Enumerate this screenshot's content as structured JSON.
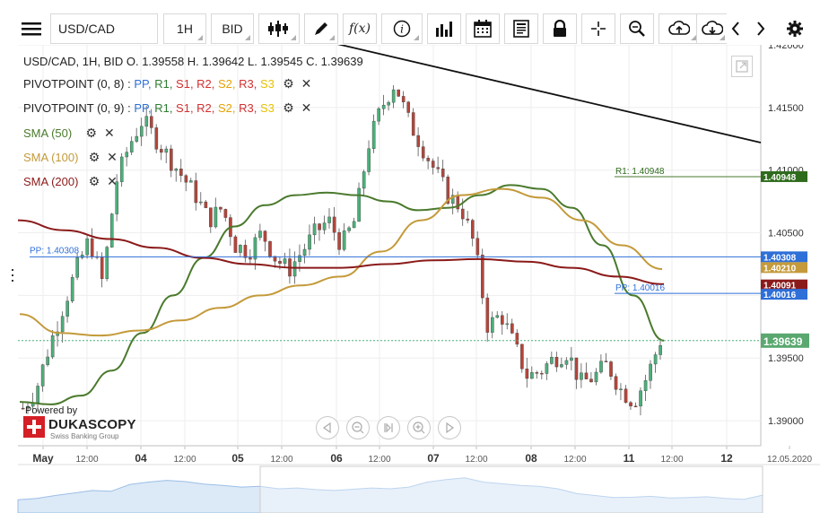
{
  "toolbar": {
    "symbol": "USD/CAD",
    "timeframe": "1H",
    "price_side": "BID",
    "fx_label": "f(x)",
    "info_label": "i"
  },
  "legend": {
    "ohlc": "USD/CAD, 1H, BID    O. 1.39558  H. 1.39642  L. 1.39545  C. 1.39639",
    "pivot1_name": "PIVOTPOINT (0, 8)",
    "pivot2_name": "PIVOTPOINT (0, 9)",
    "pivot_levels": [
      {
        "label": "PP",
        "color": "#2e6fd8"
      },
      {
        "label": "R1",
        "color": "#2e7d32"
      },
      {
        "label": "S1",
        "color": "#d32f2f"
      },
      {
        "label": "R2",
        "color": "#d32f2f"
      },
      {
        "label": "S2",
        "color": "#e6a100"
      },
      {
        "label": "R3",
        "color": "#d32f2f"
      },
      {
        "label": "S3",
        "color": "#e6c200"
      }
    ],
    "sma50": "SMA (50)",
    "sma100": "SMA (100)",
    "sma200": "SMA (200)",
    "sma50_color": "#4a7a2c",
    "sma100_color": "#c49a3a",
    "sma200_color": "#8b1a1a"
  },
  "branding": {
    "powered_by": "Powered by",
    "name": "DUKASCOPY",
    "sub": "Swiss Banking Group"
  },
  "chart_data": {
    "type": "line",
    "title": "USD/CAD, 1H, BID",
    "ohlc": {
      "open": 1.39558,
      "high": 1.39642,
      "low": 1.39545,
      "close": 1.39639
    },
    "ylim": [
      1.388,
      1.42
    ],
    "y_ticks": [
      "1.42000",
      "1.41500",
      "1.41000",
      "1.40500",
      "1.40000",
      "1.39500",
      "1.39000"
    ],
    "x_ticks": [
      "May",
      "12:00",
      "04",
      "12:00",
      "05",
      "12:00",
      "06",
      "12:00",
      "07",
      "12:00",
      "08",
      "12:00",
      "11",
      "12:00",
      "12",
      "12.05.2020"
    ],
    "price_labels": {
      "r1": "1.40948",
      "pp_upper": "1.40308",
      "sma100": "1.40210",
      "sma200": "1.40091",
      "pp_lower": "1.40016",
      "last": "1.39639"
    },
    "annotations": {
      "r1_text": "R1: 1.40948",
      "pp_left_text": "PP: 1.40308",
      "pp_right_text": "PP: 1.40016"
    },
    "series": [
      {
        "name": "USD/CAD",
        "values": [
          1.391,
          1.3925,
          1.396,
          1.399,
          1.402,
          1.4045,
          1.401,
          1.409,
          1.412,
          1.414,
          1.4125,
          1.411,
          1.4095,
          1.408,
          1.406,
          1.407,
          1.404,
          1.4035,
          1.405,
          1.403,
          1.402,
          1.4035,
          1.405,
          1.406,
          1.404,
          1.406,
          1.412,
          1.415,
          1.417,
          1.414,
          1.412,
          1.41,
          1.408,
          1.407,
          1.404,
          1.3975,
          1.3985,
          1.396,
          1.3935,
          1.394,
          1.395,
          1.3955,
          1.393,
          1.3935,
          1.3945,
          1.3925,
          1.3915,
          1.3935,
          1.3964
        ]
      },
      {
        "name": "SMA (50)",
        "values": [
          1.3915,
          1.3913,
          1.392,
          1.394,
          1.397,
          1.4,
          1.403,
          1.4055,
          1.4072,
          1.408,
          1.4082,
          1.408,
          1.4075,
          1.4068,
          1.407,
          1.408,
          1.4088,
          1.4085,
          1.407,
          1.404,
          1.4,
          1.3964
        ]
      },
      {
        "name": "SMA (100)",
        "values": [
          1.3985,
          1.397,
          1.3968,
          1.3972,
          1.398,
          1.399,
          1.4,
          1.4008,
          1.4015,
          1.4035,
          1.406,
          1.408,
          1.4085,
          1.4078,
          1.406,
          1.404,
          1.4021
        ]
      },
      {
        "name": "SMA (200)",
        "values": [
          1.406,
          1.4052,
          1.4045,
          1.4038,
          1.403,
          1.4025,
          1.4022,
          1.4022,
          1.4025,
          1.4028,
          1.4029,
          1.4027,
          1.4022,
          1.4015,
          1.4009
        ]
      }
    ],
    "trendline": {
      "from": 1.4225,
      "to": 1.4122
    }
  }
}
